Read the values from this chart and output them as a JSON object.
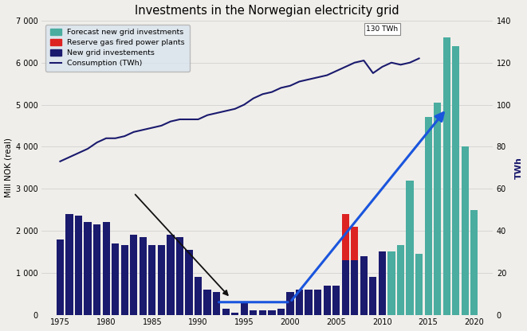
{
  "title": "Investments in the Norwegian electricity grid",
  "ylabel_left": "Mill NOK (real)",
  "ylabel_right": "TWh",
  "ylim_left": [
    0,
    7000
  ],
  "ylim_right": [
    0,
    140
  ],
  "yticks_left": [
    0,
    1000,
    2000,
    3000,
    4000,
    5000,
    6000,
    7000
  ],
  "ytick_labels_left": [
    "0",
    "1 000",
    "2 000",
    "3 000",
    "4 000",
    "5 000",
    "6 000",
    "7 000"
  ],
  "yticks_right": [
    0,
    20,
    40,
    60,
    80,
    100,
    120,
    140
  ],
  "background_color": "#f0eeea",
  "bar_years_dark": [
    1975,
    1976,
    1977,
    1978,
    1979,
    1980,
    1981,
    1982,
    1983,
    1984,
    1985,
    1986,
    1987,
    1988,
    1989,
    1990,
    1991,
    1992,
    1993,
    1994,
    1995,
    1996,
    1997,
    1998,
    1999,
    2000,
    2001,
    2002,
    2003,
    2004,
    2005,
    2006,
    2007,
    2008,
    2009,
    2010,
    2011
  ],
  "bar_values_dark": [
    1800,
    2400,
    2350,
    2200,
    2150,
    2200,
    1700,
    1650,
    1900,
    1850,
    1650,
    1650,
    1900,
    1850,
    1550,
    900,
    600,
    550,
    150,
    50,
    300,
    100,
    100,
    100,
    150,
    550,
    600,
    600,
    600,
    700,
    700,
    1300,
    1300,
    1400,
    900,
    1500,
    1400
  ],
  "bar_years_red": [
    2006,
    2007
  ],
  "bar_values_red": [
    1100,
    800
  ],
  "bar_years_teal": [
    2011,
    2012,
    2013,
    2014,
    2015,
    2016,
    2017,
    2018,
    2019,
    2020
  ],
  "bar_values_teal": [
    1500,
    1650,
    3200,
    1450,
    4700,
    5050,
    6600,
    6400,
    4000,
    2500
  ],
  "consumption_years": [
    1975,
    1976,
    1977,
    1978,
    1979,
    1980,
    1981,
    1982,
    1983,
    1984,
    1985,
    1986,
    1987,
    1988,
    1989,
    1990,
    1991,
    1992,
    1993,
    1994,
    1995,
    1996,
    1997,
    1998,
    1999,
    2000,
    2001,
    2002,
    2003,
    2004,
    2005,
    2006,
    2007,
    2008,
    2009,
    2010,
    2011,
    2012,
    2013,
    2014
  ],
  "consumption_values": [
    73,
    75,
    77,
    79,
    82,
    84,
    84,
    85,
    87,
    88,
    89,
    90,
    92,
    93,
    93,
    93,
    95,
    96,
    97,
    98,
    100,
    103,
    105,
    106,
    108,
    109,
    111,
    112,
    113,
    114,
    116,
    118,
    120,
    121,
    115,
    118,
    120,
    119,
    120,
    122
  ],
  "annotation_text": "130 TWh",
  "teal_color": "#4aada0",
  "dark_bar_color": "#1a1a6e",
  "red_bar_color": "#dd2222",
  "consumption_line_color": "#1a1a6e",
  "blue_arrow_color": "#1a55dd",
  "xlim": [
    1973,
    2022
  ],
  "xticks": [
    1975,
    1980,
    1985,
    1990,
    1995,
    2000,
    2005,
    2010,
    2015,
    2020
  ]
}
